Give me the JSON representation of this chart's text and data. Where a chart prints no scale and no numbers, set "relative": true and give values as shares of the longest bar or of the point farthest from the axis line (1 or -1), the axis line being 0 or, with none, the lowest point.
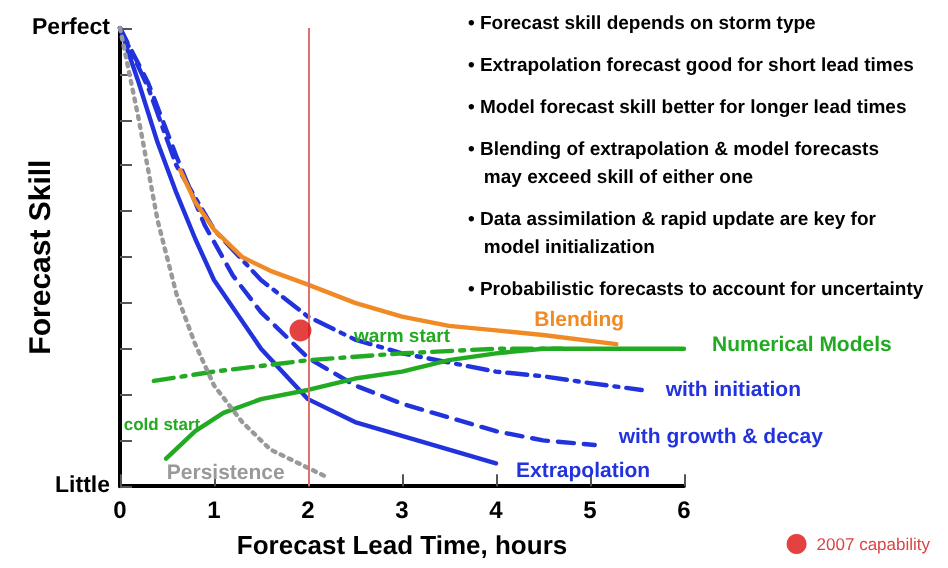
{
  "chart_data": {
    "type": "line",
    "xlabel": "Forecast Lead Time, hours",
    "ylabel": "Forecast Skill",
    "xlim": [
      0,
      6
    ],
    "xticks": [
      0,
      1,
      2,
      3,
      4,
      5,
      6
    ],
    "relative": true,
    "grid": false,
    "marker": "none",
    "legend": "bottom right",
    "series": [
      {
        "name": "Extrapolation",
        "color": "#2233dd",
        "line_style": "solid",
        "x": [
          0,
          0.2,
          0.4,
          0.6,
          0.8,
          1,
          1.5,
          2,
          2.5,
          3,
          3.5,
          4
        ],
        "values": [
          1,
          0.88,
          0.75,
          0.64,
          0.54,
          0.45,
          0.3,
          0.19,
          0.14,
          0.11,
          0.08,
          0.05
        ]
      },
      {
        "name": "with growth & decay",
        "color": "#2233dd",
        "line_style": "dashed",
        "x": [
          0,
          0.3,
          0.6,
          0.9,
          1.2,
          1.5,
          2,
          2.5,
          3,
          3.5,
          4,
          4.5,
          5.05
        ],
        "values": [
          1,
          0.88,
          0.72,
          0.57,
          0.46,
          0.38,
          0.28,
          0.22,
          0.18,
          0.15,
          0.12,
          0.1,
          0.09
        ]
      },
      {
        "name": "with initiation",
        "color": "#2233dd",
        "line_style": "dashdot",
        "x": [
          0,
          0.3,
          0.6,
          1,
          1.5,
          2,
          2.5,
          3,
          3.5,
          4,
          4.5,
          5,
          5.55
        ],
        "values": [
          1,
          0.87,
          0.7,
          0.56,
          0.45,
          0.37,
          0.32,
          0.29,
          0.27,
          0.25,
          0.24,
          0.225,
          0.21
        ]
      },
      {
        "name": "Blending",
        "color": "#f08a24",
        "line_style": "solid",
        "x": [
          0.64,
          0.8,
          1,
          1.3,
          1.6,
          2,
          2.5,
          3,
          3.5,
          4,
          4.5,
          5.28
        ],
        "values": [
          0.69,
          0.62,
          0.56,
          0.5,
          0.47,
          0.44,
          0.4,
          0.37,
          0.35,
          0.34,
          0.33,
          0.31
        ]
      },
      {
        "name": "Numerical Models",
        "color": "#22aa22",
        "line_style": "solid",
        "x": [
          0.49,
          0.8,
          1.1,
          1.5,
          2,
          2.5,
          3,
          3.5,
          4,
          4.5,
          5,
          6
        ],
        "values": [
          0.06,
          0.12,
          0.16,
          0.19,
          0.21,
          0.235,
          0.25,
          0.275,
          0.29,
          0.3,
          0.3,
          0.3
        ]
      },
      {
        "name": "warm start",
        "color": "#22aa22",
        "line_style": "dashdot",
        "x": [
          0.36,
          1,
          2,
          3,
          4,
          4.7
        ],
        "values": [
          0.23,
          0.25,
          0.275,
          0.29,
          0.3,
          0.3
        ]
      },
      {
        "name": "Persistence",
        "color": "#999999",
        "line_style": "dotted",
        "x": [
          0,
          0.2,
          0.4,
          0.6,
          0.8,
          1,
          1.3,
          1.6,
          2,
          2.2
        ],
        "values": [
          1,
          0.8,
          0.58,
          0.42,
          0.31,
          0.22,
          0.14,
          0.08,
          0.04,
          0.02
        ]
      },
      {
        "name": "2007 capability",
        "type": "scatter",
        "marker": "circle",
        "color": "#dd1111",
        "x": [
          1.92
        ],
        "values": [
          0.34
        ]
      }
    ],
    "ref_lines": [
      {
        "axis": "x",
        "value": 2,
        "color": "#e07070",
        "line_style": "solid"
      }
    ],
    "annotations": [
      "Perfect",
      "Little",
      "cold start",
      "• Forecast skill depends on storm type",
      "• Extrapolation forecast good for short lead times",
      "• Model forecast skill better for longer lead times",
      "• Blending of extrapolation & model forecasts\n   may exceed skill of either one",
      "• Data assimilation & rapid update are key for\n   model initialization",
      "• Probabilistic forecasts to account for uncertainty"
    ]
  }
}
